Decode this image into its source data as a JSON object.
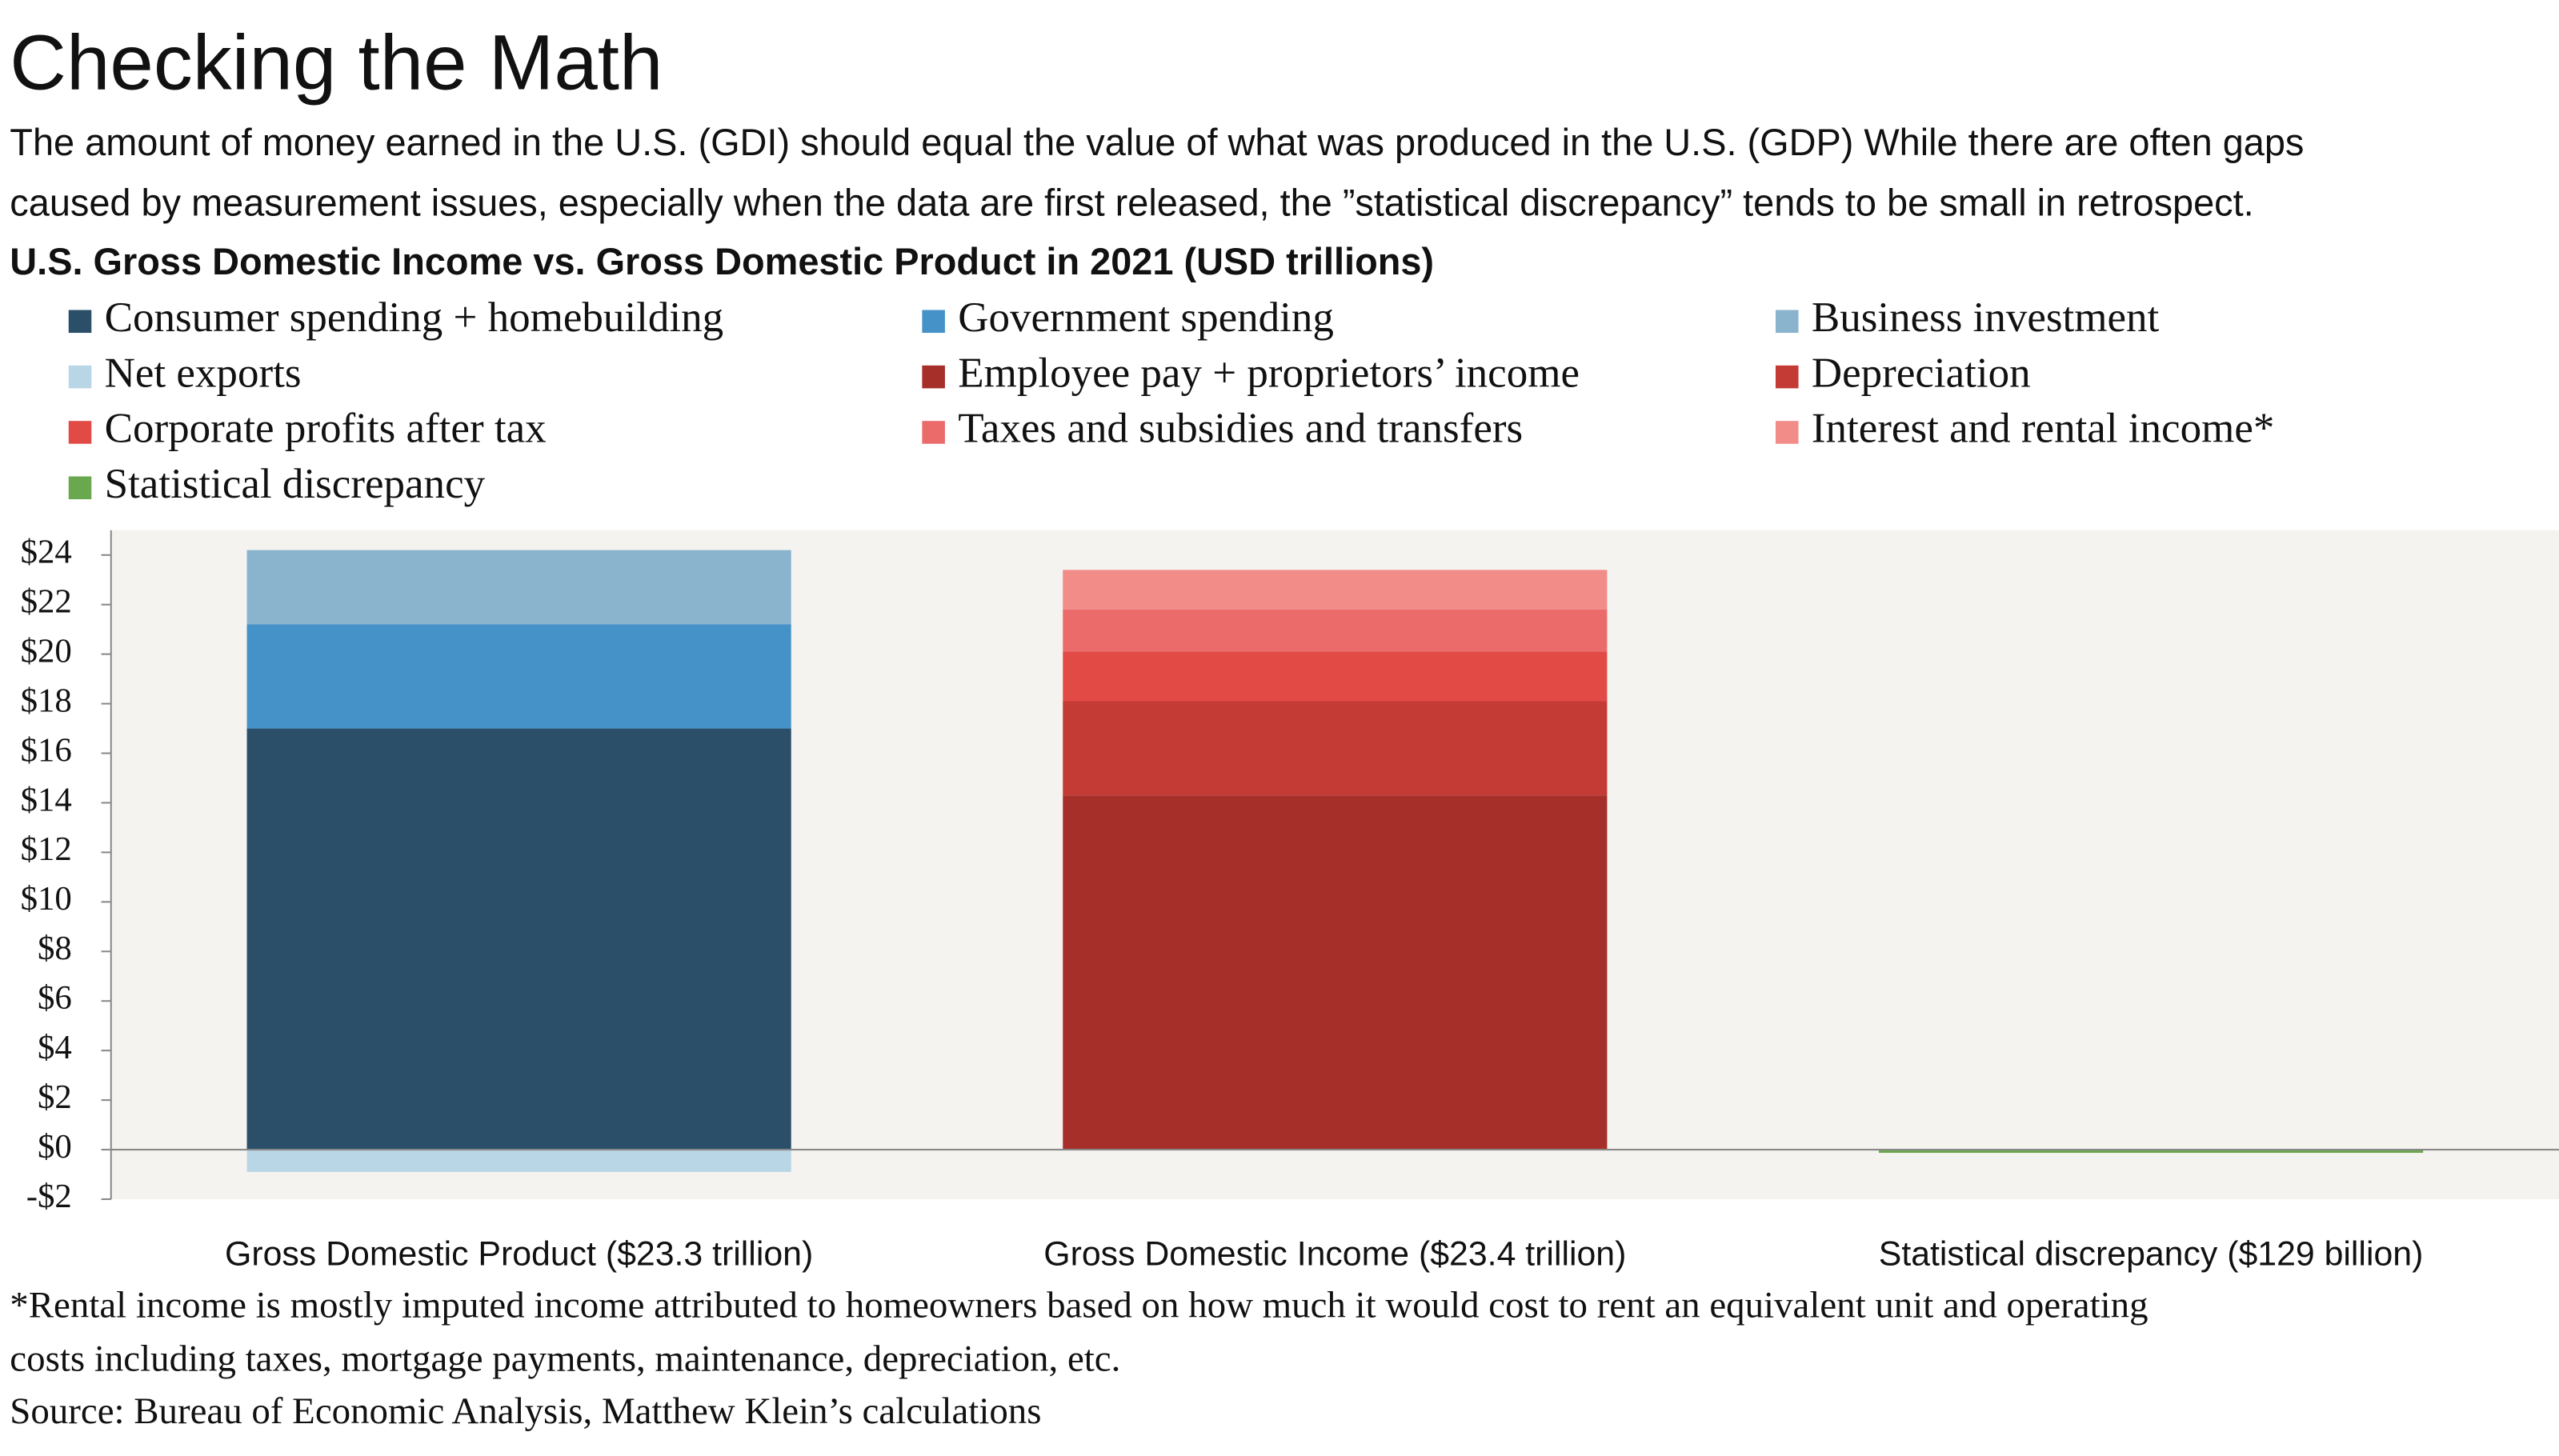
{
  "chart_data": {
    "type": "bar",
    "stacked": true,
    "title": "Checking the Math",
    "subtitle_lines": [
      "The amount of money earned in the U.S. (GDI) should equal the value of what was produced in the U.S. (GDP) While there are often gaps",
      "caused by measurement issues, especially when the data are first released, the ”statistical discrepancy” tends to be small in retrospect."
    ],
    "chart_title": "U.S. Gross Domestic Income vs. Gross Domestic Product in 2021 (USD trillions)",
    "categories": [
      "Gross Domestic Product ($23.3 trillion)",
      "Gross Domestic Income ($23.4 trillion)",
      "Statistical discrepancy ($129 billion)"
    ],
    "series": [
      {
        "name": "Consumer spending + homebuilding",
        "color": "#2b4f69",
        "values": [
          17.0,
          null,
          null
        ]
      },
      {
        "name": "Government spending",
        "color": "#4592c8",
        "values": [
          4.2,
          null,
          null
        ]
      },
      {
        "name": "Business investment",
        "color": "#8ab3ce",
        "values": [
          3.0,
          null,
          null
        ]
      },
      {
        "name": "Net exports",
        "color": "#b9d6e6",
        "values": [
          -0.9,
          null,
          null
        ]
      },
      {
        "name": "Employee pay + proprietors’ income",
        "color": "#a62f2a",
        "values": [
          null,
          14.3,
          null
        ]
      },
      {
        "name": "Depreciation",
        "color": "#c43a34",
        "values": [
          null,
          3.8,
          null
        ]
      },
      {
        "name": "Corporate profits after tax",
        "color": "#e24a45",
        "values": [
          null,
          2.0,
          null
        ]
      },
      {
        "name": "Taxes and subsidies and transfers",
        "color": "#eb6b6b",
        "values": [
          null,
          1.7,
          null
        ]
      },
      {
        "name": "Interest and rental income*",
        "color": "#f18c89",
        "values": [
          null,
          1.6,
          null
        ]
      },
      {
        "name": "Statistical discrepancy",
        "color": "#6aa84f",
        "values": [
          null,
          null,
          -0.129
        ]
      }
    ],
    "ylim": [
      -2,
      25
    ],
    "yticks": [
      {
        "value": -2,
        "label": "-$2"
      },
      {
        "value": 0,
        "label": "$0"
      },
      {
        "value": 2,
        "label": "$2"
      },
      {
        "value": 4,
        "label": "$4"
      },
      {
        "value": 6,
        "label": "$6"
      },
      {
        "value": 8,
        "label": "$8"
      },
      {
        "value": 10,
        "label": "$10"
      },
      {
        "value": 12,
        "label": "$12"
      },
      {
        "value": 14,
        "label": "$14"
      },
      {
        "value": 16,
        "label": "$16"
      },
      {
        "value": 18,
        "label": "$18"
      },
      {
        "value": 20,
        "label": "$20"
      },
      {
        "value": 22,
        "label": "$22"
      },
      {
        "value": 24,
        "label": "$24"
      }
    ],
    "grid": false,
    "legend": "top",
    "footnote_lines": [
      "*Rental income is mostly imputed income attributed to homeowners based on how much it would cost to rent an equivalent unit and operating",
      "costs including taxes, mortgage payments, maintenance, depreciation, etc."
    ],
    "source": "Source: Bureau of Economic Analysis, Matthew Klein’s calculations"
  }
}
